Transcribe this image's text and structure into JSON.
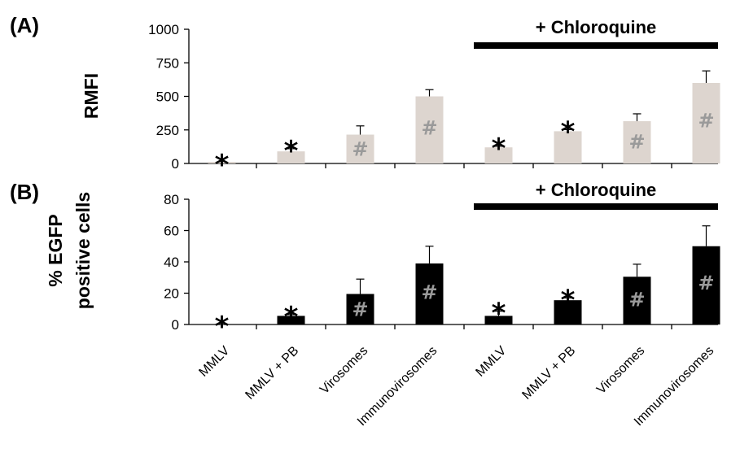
{
  "chart_data": [
    {
      "type": "bar",
      "panel": "(A)",
      "ylabel": "RMFI",
      "ylim": [
        0,
        1000
      ],
      "yticks": [
        "0",
        "250",
        "500",
        "750",
        "1000"
      ],
      "categories": [
        "MMLV",
        "MMLV + PB",
        "Virosomes",
        "Immunovirosomes",
        "MMLV",
        "MMLV + PB",
        "Virosomes",
        "Immunovirosomes"
      ],
      "values": [
        5,
        90,
        215,
        500,
        120,
        240,
        315,
        600
      ],
      "errors": [
        0,
        20,
        65,
        50,
        8,
        12,
        55,
        90
      ],
      "star": [
        true,
        true,
        false,
        false,
        true,
        true,
        false,
        false
      ],
      "hash": [
        false,
        false,
        true,
        true,
        false,
        false,
        true,
        true
      ],
      "bar_color": "#ddd5cf",
      "group_label": "+ Chloroquine",
      "group_span": [
        4,
        7
      ]
    },
    {
      "type": "bar",
      "panel": "(B)",
      "ylabel": [
        "% EGFP",
        "positive cells"
      ],
      "ylim": [
        0,
        80
      ],
      "yticks": [
        "0",
        "20",
        "40",
        "60",
        "80"
      ],
      "categories": [
        "MMLV",
        "MMLV + PB",
        "Virosomes",
        "Immunovirosomes",
        "MMLV",
        "MMLV + PB",
        "Virosomes",
        "Immunovirosomes"
      ],
      "values": [
        0,
        5.5,
        19.5,
        39,
        5.5,
        15.5,
        30.5,
        50
      ],
      "errors": [
        0,
        0.8,
        9.5,
        11,
        3,
        1.5,
        8,
        13
      ],
      "star": [
        true,
        true,
        false,
        false,
        true,
        true,
        false,
        false
      ],
      "hash": [
        false,
        false,
        true,
        true,
        false,
        false,
        true,
        true
      ],
      "bar_color": "#000000",
      "group_label": "+ Chloroquine",
      "group_span": [
        4,
        7
      ]
    }
  ],
  "markers": {
    "star": "*",
    "hash": "#"
  }
}
